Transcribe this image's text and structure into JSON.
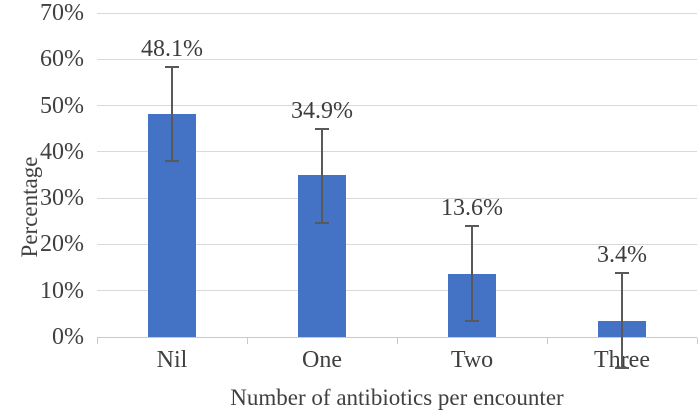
{
  "figure": {
    "background": "#FFFFFF"
  },
  "chart_data": {
    "type": "bar",
    "title": "",
    "categories": [
      "Nil",
      "One",
      "Two",
      "Three"
    ],
    "values": [
      48.1,
      34.9,
      13.6,
      3.4
    ],
    "data_labels": [
      "48.1%",
      "34.9%",
      "13.6%",
      "3.4%"
    ],
    "error_bars": [
      {
        "low": 38.1,
        "high": 58.4
      },
      {
        "low": 24.7,
        "high": 45.0
      },
      {
        "low": 3.5,
        "high": 24.0
      },
      {
        "low": -6.7,
        "high": 13.8
      }
    ],
    "xlabel": "Number of antibiotics per encounter",
    "ylabel": "Percentage",
    "ylim": [
      0,
      70
    ],
    "ytick_step": 10,
    "ytick_labels": [
      "0%",
      "10%",
      "20%",
      "30%",
      "40%",
      "50%",
      "60%",
      "70%"
    ],
    "grid": true,
    "legend": false,
    "colors": {
      "bar": "#4472C4",
      "error_bar": "#595959",
      "gridline": "#D9D9D9",
      "axis_line": "#C9C9C9",
      "text": "#404040"
    }
  }
}
